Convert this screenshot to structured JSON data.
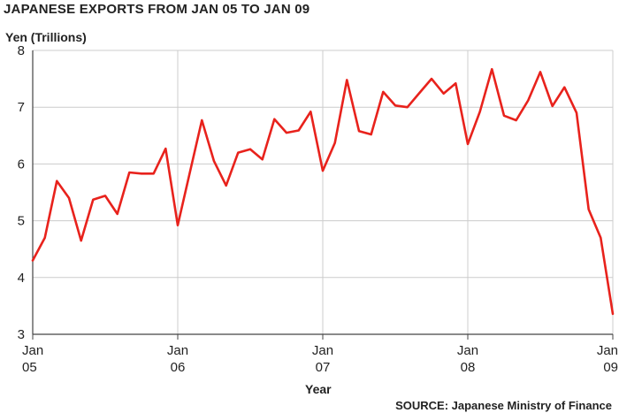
{
  "chart_data": {
    "type": "line",
    "title": "JAPANESE EXPORTS FROM JAN 05 TO JAN 09",
    "ylabel": "Yen (Trillions)",
    "xlabel": "Year",
    "source": "SOURCE: Japanese Ministry of Finance",
    "ylim": [
      3,
      8
    ],
    "yticks": [
      "3",
      "4",
      "5",
      "6",
      "7",
      "8"
    ],
    "xticks": [
      {
        "month": 0,
        "line1": "Jan",
        "line2": "05"
      },
      {
        "month": 12,
        "line1": "Jan",
        "line2": "06"
      },
      {
        "month": 24,
        "line1": "Jan",
        "line2": "07"
      },
      {
        "month": 36,
        "line1": "Jan",
        "line2": "08"
      },
      {
        "month": 48,
        "line1": "Jan",
        "line2": "09"
      }
    ],
    "grid": true,
    "color": "#e8221c",
    "series": [
      {
        "values": [
          4.3,
          4.7,
          5.7,
          5.4,
          4.65,
          5.37,
          5.44,
          5.12,
          5.85,
          5.83,
          5.83,
          6.27,
          4.92,
          5.85,
          6.77,
          6.05,
          5.62,
          6.2,
          6.26,
          6.08,
          6.79,
          6.55,
          6.59,
          6.92,
          5.88,
          6.37,
          7.48,
          6.58,
          6.52,
          7.27,
          7.03,
          7.0,
          7.25,
          7.5,
          7.24,
          7.42,
          6.35,
          6.92,
          7.67,
          6.85,
          6.77,
          7.12,
          7.62,
          7.02,
          7.35,
          6.9,
          5.2,
          4.7,
          3.36
        ]
      }
    ]
  }
}
